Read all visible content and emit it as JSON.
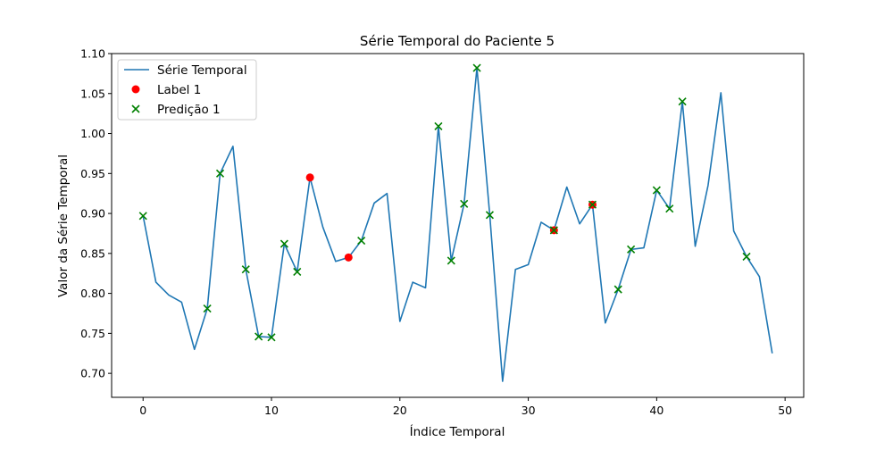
{
  "chart_data": {
    "type": "line",
    "title": "Série Temporal do Paciente 5",
    "xlabel": "Índice Temporal",
    "ylabel": "Valor da Série Temporal",
    "xlim": [
      -2.45,
      51.45
    ],
    "ylim": [
      0.67,
      1.1
    ],
    "xticks": [
      0,
      10,
      20,
      30,
      40,
      50
    ],
    "yticks": [
      0.7,
      0.75,
      0.8,
      0.85,
      0.9,
      0.95,
      1.0,
      1.05,
      1.1
    ],
    "grid": false,
    "legend_position": "top-left",
    "series": [
      {
        "name": "Série Temporal",
        "kind": "line",
        "color": "#1f77b4",
        "x": [
          0,
          1,
          2,
          3,
          4,
          5,
          6,
          7,
          8,
          9,
          10,
          11,
          12,
          13,
          14,
          15,
          16,
          17,
          18,
          19,
          20,
          21,
          22,
          23,
          24,
          25,
          26,
          27,
          28,
          29,
          30,
          31,
          32,
          33,
          34,
          35,
          36,
          37,
          38,
          39,
          40,
          41,
          42,
          43,
          44,
          45,
          46,
          47,
          48,
          49
        ],
        "y": [
          0.897,
          0.814,
          0.798,
          0.789,
          0.73,
          0.781,
          0.95,
          0.984,
          0.83,
          0.746,
          0.745,
          0.862,
          0.827,
          0.945,
          0.883,
          0.84,
          0.845,
          0.866,
          0.913,
          0.925,
          0.765,
          0.814,
          0.807,
          1.009,
          0.841,
          0.912,
          1.082,
          0.898,
          0.69,
          0.83,
          0.836,
          0.889,
          0.879,
          0.933,
          0.887,
          0.911,
          0.763,
          0.805,
          0.855,
          0.857,
          0.929,
          0.906,
          1.04,
          0.859,
          0.935,
          1.051,
          0.878,
          0.846,
          0.821,
          0.725
        ]
      },
      {
        "name": "Label 1",
        "kind": "scatter-circle",
        "color": "#ff0000",
        "x": [
          13,
          16,
          32,
          35
        ],
        "y": [
          0.945,
          0.845,
          0.879,
          0.911
        ]
      },
      {
        "name": "Predição 1",
        "kind": "scatter-x",
        "color": "#008000",
        "x": [
          0,
          5,
          6,
          8,
          9,
          10,
          11,
          12,
          17,
          23,
          24,
          25,
          26,
          27,
          32,
          35,
          37,
          38,
          40,
          41,
          42,
          47
        ],
        "y": [
          0.897,
          0.781,
          0.95,
          0.83,
          0.746,
          0.745,
          0.862,
          0.827,
          0.866,
          1.009,
          0.841,
          0.912,
          1.082,
          0.898,
          0.879,
          0.911,
          0.805,
          0.855,
          0.929,
          0.906,
          1.04,
          0.846
        ]
      }
    ]
  }
}
